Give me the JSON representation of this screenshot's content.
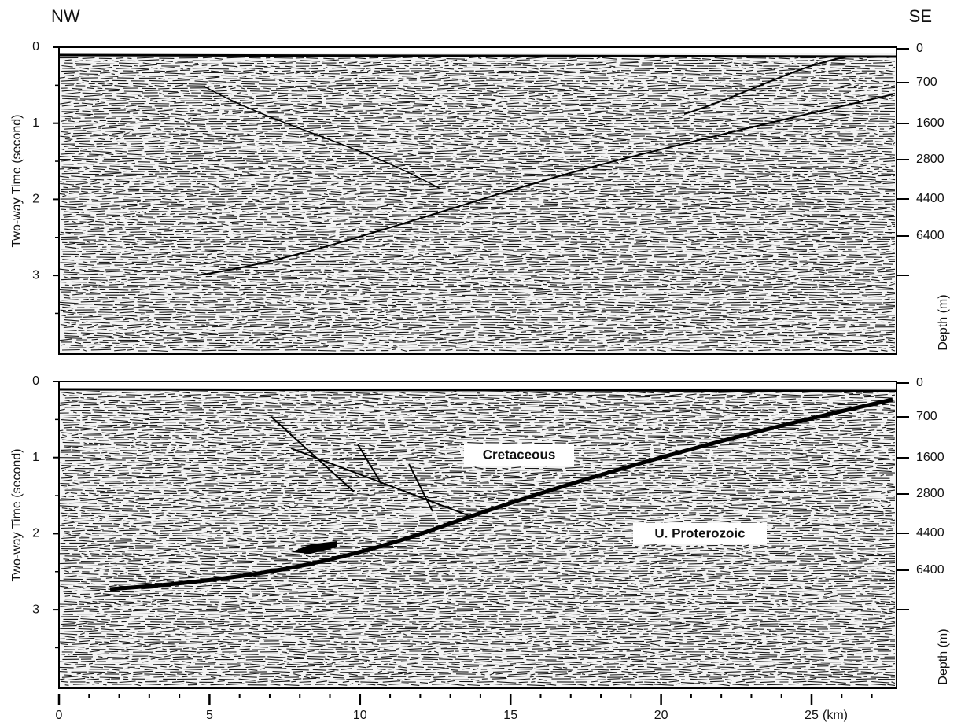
{
  "header": {
    "left": "NW",
    "right": "SE"
  },
  "panels": [
    {
      "y_label": "Two-way Time (second)",
      "yticks": [
        0,
        1,
        2,
        3
      ],
      "depth_label": "Depth (m)",
      "depth_ticks": [
        0,
        700,
        1600,
        2800,
        4400,
        6400
      ]
    },
    {
      "y_label": "Two-way Time (second)",
      "yticks": [
        0,
        1,
        2,
        3
      ],
      "depth_label": "Depth (m)",
      "depth_ticks": [
        0,
        700,
        1600,
        2800,
        4400,
        6400
      ],
      "annotations": [
        "Cretaceous",
        "U. Proterozoic"
      ]
    }
  ],
  "x_axis": {
    "ticks": [
      0,
      5,
      10,
      15,
      20,
      25
    ],
    "unit": "(km)"
  }
}
